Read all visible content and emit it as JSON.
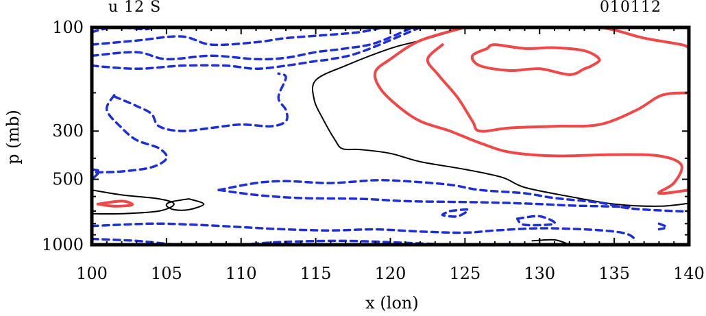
{
  "chart_data": {
    "type": "contour",
    "title_left": "u 12 S",
    "title_right": "010112",
    "xlabel": "x (lon)",
    "ylabel": "p (mb)",
    "xlim": [
      100,
      140
    ],
    "ylim": [
      1000,
      100
    ],
    "y_scale": "log",
    "x_ticks": [
      100,
      105,
      110,
      115,
      120,
      125,
      130,
      135,
      140
    ],
    "y_ticks": [
      100,
      300,
      500,
      1000
    ],
    "grid": false,
    "colors": {
      "positive": "#f04848",
      "zero": "#000000",
      "negative": "#1f2fd6"
    },
    "contours": [
      {
        "kind": "zero",
        "points": [
          [
            125,
            100
          ],
          [
            124,
            105
          ],
          [
            122,
            115
          ],
          [
            120,
            125
          ],
          [
            117,
            150
          ],
          [
            115,
            175
          ],
          [
            114.9,
            215
          ],
          [
            115.5,
            265
          ],
          [
            116.3,
            330
          ],
          [
            116.8,
            362
          ],
          [
            118,
            365
          ],
          [
            120,
            380
          ],
          [
            122,
            415
          ],
          [
            125,
            450
          ],
          [
            127.5,
            490
          ],
          [
            129,
            545
          ],
          [
            132,
            600
          ],
          [
            135,
            650
          ],
          [
            138,
            665
          ],
          [
            140,
            645
          ]
        ]
      },
      {
        "kind": "zero",
        "points": [
          [
            100,
            560
          ],
          [
            102,
            590
          ],
          [
            104.5,
            615
          ],
          [
            105.5,
            650
          ],
          [
            104.5,
            700
          ],
          [
            102,
            720
          ],
          [
            100,
            720
          ]
        ]
      },
      {
        "kind": "zero",
        "points": [
          [
            106.5,
            615
          ],
          [
            107.5,
            650
          ],
          [
            106.5,
            690
          ],
          [
            105.5,
            690
          ],
          [
            105,
            660
          ],
          [
            105.3,
            635
          ],
          [
            106.5,
            615
          ]
        ]
      },
      {
        "kind": "zero",
        "points": [
          [
            129.5,
            960
          ],
          [
            131,
            950
          ],
          [
            132,
            1000
          ]
        ]
      },
      {
        "kind": "positive",
        "points": [
          [
            125,
            100
          ],
          [
            122,
            115
          ],
          [
            120,
            140
          ],
          [
            119,
            160
          ],
          [
            119.3,
            190
          ],
          [
            120.5,
            230
          ],
          [
            122,
            270
          ],
          [
            124,
            300
          ],
          [
            126,
            340
          ],
          [
            128,
            375
          ],
          [
            131,
            390
          ],
          [
            135,
            385
          ],
          [
            138,
            390
          ],
          [
            139.5,
            430
          ],
          [
            139,
            520
          ],
          [
            138,
            580
          ],
          [
            140,
            560
          ]
        ]
      },
      {
        "kind": "positive",
        "points": [
          [
            123.5,
            120
          ],
          [
            122.5,
            140
          ],
          [
            123.2,
            165
          ],
          [
            124.5,
            210
          ],
          [
            125.5,
            270
          ],
          [
            126,
            300
          ],
          [
            128,
            290
          ],
          [
            131,
            285
          ],
          [
            134,
            280
          ],
          [
            136.5,
            240
          ],
          [
            138.2,
            205
          ],
          [
            140,
            200
          ]
        ]
      },
      {
        "kind": "positive",
        "points": [
          [
            126.5,
            125
          ],
          [
            125.5,
            135
          ],
          [
            126,
            150
          ],
          [
            128,
            158
          ],
          [
            130,
            155
          ],
          [
            132,
            165
          ],
          [
            133,
            155
          ],
          [
            133.5,
            150
          ],
          [
            134,
            140
          ],
          [
            133,
            128
          ],
          [
            131,
            124
          ],
          [
            129,
            125
          ],
          [
            127,
            120
          ],
          [
            126.5,
            125
          ]
        ]
      },
      {
        "kind": "positive",
        "points": [
          [
            130,
            100
          ],
          [
            134,
            100
          ],
          [
            137,
            112
          ],
          [
            139.5,
            120
          ],
          [
            140,
            125
          ]
        ]
      },
      {
        "kind": "positive",
        "points": [
          [
            100.4,
            650
          ],
          [
            102,
            630
          ],
          [
            102.7,
            655
          ],
          [
            101.5,
            665
          ],
          [
            100.4,
            650
          ]
        ]
      },
      {
        "kind": "negative",
        "points": [
          [
            100,
            105
          ],
          [
            101.5,
            100
          ],
          [
            103.5,
            102
          ],
          [
            104,
            100
          ]
        ]
      },
      {
        "kind": "negative",
        "points": [
          [
            100,
            120
          ],
          [
            103,
            115
          ],
          [
            106,
            110
          ],
          [
            108,
            120
          ],
          [
            111,
            117
          ],
          [
            113,
            112
          ],
          [
            116,
            108
          ],
          [
            118,
            105
          ],
          [
            119.5,
            100
          ]
        ]
      },
      {
        "kind": "negative",
        "points": [
          [
            100,
            135
          ],
          [
            103,
            130
          ],
          [
            105,
            140
          ],
          [
            108,
            135
          ],
          [
            111,
            140
          ],
          [
            113,
            138
          ],
          [
            115,
            130
          ],
          [
            117,
            125
          ],
          [
            119,
            118
          ],
          [
            121.5,
            100
          ]
        ]
      },
      {
        "kind": "negative",
        "points": [
          [
            100,
            150
          ],
          [
            103,
            155
          ],
          [
            106,
            150
          ],
          [
            109,
            150
          ],
          [
            111,
            155
          ],
          [
            113,
            150
          ],
          [
            115,
            143
          ],
          [
            116,
            140
          ],
          [
            118,
            130
          ],
          [
            122,
            100
          ]
        ]
      },
      {
        "kind": "negative",
        "points": [
          [
            101.5,
            208
          ],
          [
            103,
            230
          ],
          [
            104,
            250
          ],
          [
            104.5,
            285
          ],
          [
            106,
            300
          ],
          [
            108,
            290
          ],
          [
            110,
            280
          ],
          [
            112,
            285
          ],
          [
            113,
            270
          ],
          [
            113,
            240
          ],
          [
            112.5,
            210
          ],
          [
            113,
            170
          ],
          [
            112.5,
            163
          ]
        ]
      },
      {
        "kind": "negative",
        "points": [
          [
            101.5,
            205
          ],
          [
            101,
            240
          ],
          [
            102,
            290
          ],
          [
            103,
            330
          ],
          [
            104.5,
            360
          ],
          [
            105,
            400
          ],
          [
            104,
            440
          ],
          [
            102,
            460
          ],
          [
            100,
            465
          ]
        ]
      },
      {
        "kind": "negative",
        "points": [
          [
            100,
            450
          ],
          [
            100.5,
            460
          ],
          [
            100,
            500
          ]
        ]
      },
      {
        "kind": "negative",
        "points": [
          [
            108.5,
            560
          ],
          [
            111,
            520
          ],
          [
            113,
            510
          ],
          [
            116,
            520
          ],
          [
            119,
            505
          ],
          [
            121,
            510
          ],
          [
            124,
            530
          ],
          [
            126,
            560
          ],
          [
            129,
            580
          ],
          [
            131,
            610
          ],
          [
            134,
            640
          ],
          [
            136,
            680
          ],
          [
            139,
            700
          ],
          [
            140,
            700
          ]
        ]
      },
      {
        "kind": "negative",
        "points": [
          [
            108.5,
            560
          ],
          [
            111,
            590
          ],
          [
            114,
            610
          ],
          [
            118,
            615
          ],
          [
            121,
            630
          ],
          [
            124,
            635
          ],
          [
            127,
            640
          ],
          [
            130,
            650
          ],
          [
            132,
            660
          ],
          [
            134,
            665
          ],
          [
            136,
            670
          ]
        ]
      },
      {
        "kind": "negative",
        "points": [
          [
            124,
            700
          ],
          [
            125.2,
            690
          ],
          [
            124.5,
            740
          ],
          [
            123.5,
            730
          ],
          [
            124,
            700
          ]
        ]
      },
      {
        "kind": "negative",
        "points": [
          [
            128.5,
            760
          ],
          [
            130,
            740
          ],
          [
            131,
            800
          ],
          [
            129,
            810
          ],
          [
            128.5,
            760
          ]
        ]
      },
      {
        "kind": "negative",
        "points": [
          [
            100,
            820
          ],
          [
            104,
            800
          ],
          [
            107,
            810
          ],
          [
            110,
            830
          ],
          [
            113,
            850
          ],
          [
            116,
            860
          ],
          [
            119,
            850
          ],
          [
            122,
            870
          ],
          [
            125,
            880
          ],
          [
            127,
            860
          ],
          [
            130,
            840
          ],
          [
            133,
            850
          ],
          [
            135,
            870
          ],
          [
            136,
            900
          ],
          [
            136.5,
            960
          ]
        ]
      },
      {
        "kind": "negative",
        "points": [
          [
            110,
            1000
          ],
          [
            113,
            970
          ],
          [
            117,
            960
          ],
          [
            121,
            980
          ],
          [
            124,
            1000
          ]
        ]
      },
      {
        "kind": "negative",
        "points": [
          [
            100,
            940
          ],
          [
            103,
            960
          ],
          [
            105,
            990
          ],
          [
            106,
            1000
          ]
        ]
      },
      {
        "kind": "negative",
        "points": [
          [
            138,
            800
          ],
          [
            138.5,
            830
          ],
          [
            138,
            850
          ]
        ]
      }
    ]
  }
}
